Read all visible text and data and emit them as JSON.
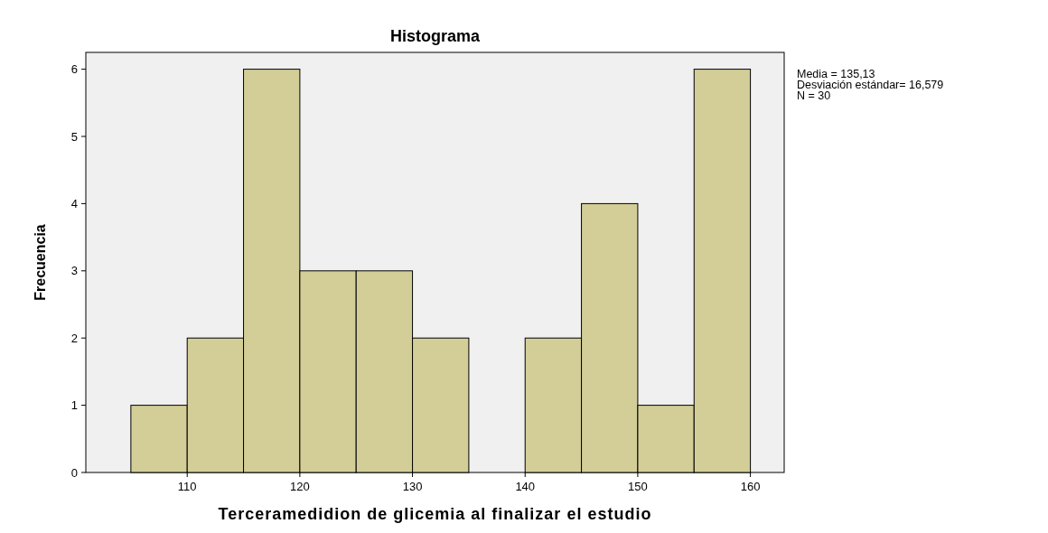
{
  "chart_data": {
    "type": "histogram",
    "title": "Histograma",
    "xlabel": "Terceramedidion de glicemia al finalizar el estudio",
    "ylabel": "Frecuencia",
    "bins": [
      105,
      110,
      115,
      120,
      125,
      130,
      135,
      140,
      145,
      150,
      155,
      160
    ],
    "values": [
      1,
      2,
      6,
      3,
      3,
      2,
      0,
      2,
      4,
      1,
      6
    ],
    "color": "#d3ce97",
    "xlim": [
      101,
      163
    ],
    "xticks": [
      110,
      120,
      130,
      140,
      150,
      160
    ],
    "ylim": [
      0,
      6.25
    ],
    "yticks": [
      0,
      1,
      2,
      3,
      4,
      5,
      6
    ],
    "grid": false,
    "annotations": [
      "Media = 135,13",
      "Desviación estándar= 16,579",
      "N = 30"
    ]
  }
}
